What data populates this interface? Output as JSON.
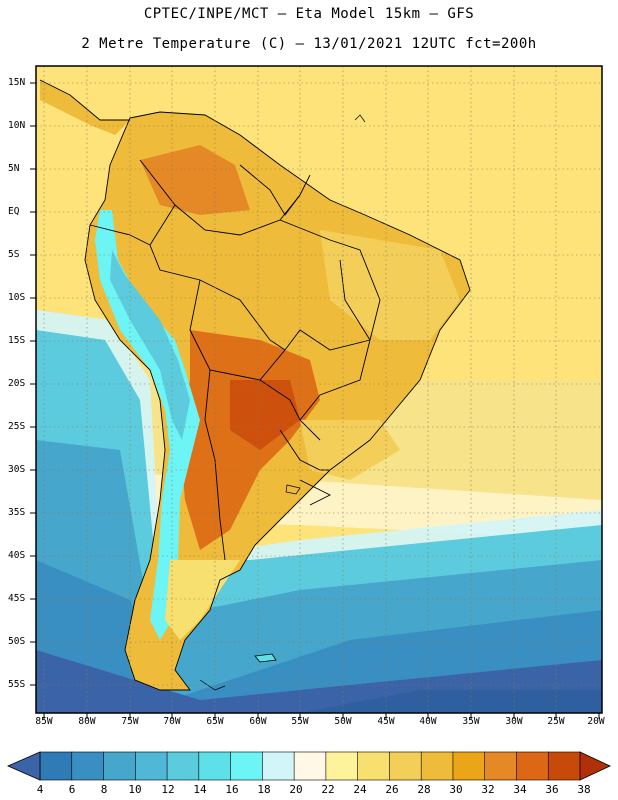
{
  "header": {
    "line1": "CPTEC/INPE/MCT –  Eta Model 15km – GFS",
    "line2": "2 Metre Temperature (C) – 13/01/2021 12UTC fct=200h"
  },
  "map": {
    "lat_labels": [
      "15N",
      "10N",
      "5N",
      "EQ",
      "5S",
      "10S",
      "15S",
      "20S",
      "25S",
      "30S",
      "35S",
      "40S",
      "45S",
      "50S",
      "55S"
    ],
    "lon_labels": [
      "85W",
      "80W",
      "75W",
      "70W",
      "65W",
      "60W",
      "55W",
      "50W",
      "45W",
      "40W",
      "35W",
      "30W",
      "25W",
      "20W"
    ]
  },
  "colorbar": {
    "ticks": [
      "4",
      "6",
      "8",
      "10",
      "12",
      "14",
      "16",
      "18",
      "20",
      "22",
      "24",
      "26",
      "28",
      "30",
      "32",
      "34",
      "36",
      "38"
    ],
    "colors": [
      "#3b63a7",
      "#2f7bb5",
      "#3a8fc2",
      "#46a6cc",
      "#50b8d6",
      "#5ccbdd",
      "#5ee0e8",
      "#6df5f5",
      "#d2f5f9",
      "#fff8e6",
      "#fdf39a",
      "#f7e070",
      "#f3cf5a",
      "#eebc3a",
      "#eaa618",
      "#e58826",
      "#dc6714",
      "#c84a0a",
      "#b8350c"
    ],
    "low_color": "#3b63a7",
    "high_color": "#b0300a"
  },
  "colors": {
    "ocean_tropical": "#fde37a",
    "ocean_cool": "#f7f2c8",
    "ocean_cold": "#5ccbdd",
    "ocean_deep": "#3b63a7",
    "land_warm": "#eebc3a",
    "land_hot": "#e58826",
    "land_hottest": "#d8701c",
    "andes": "#6df5f5"
  }
}
